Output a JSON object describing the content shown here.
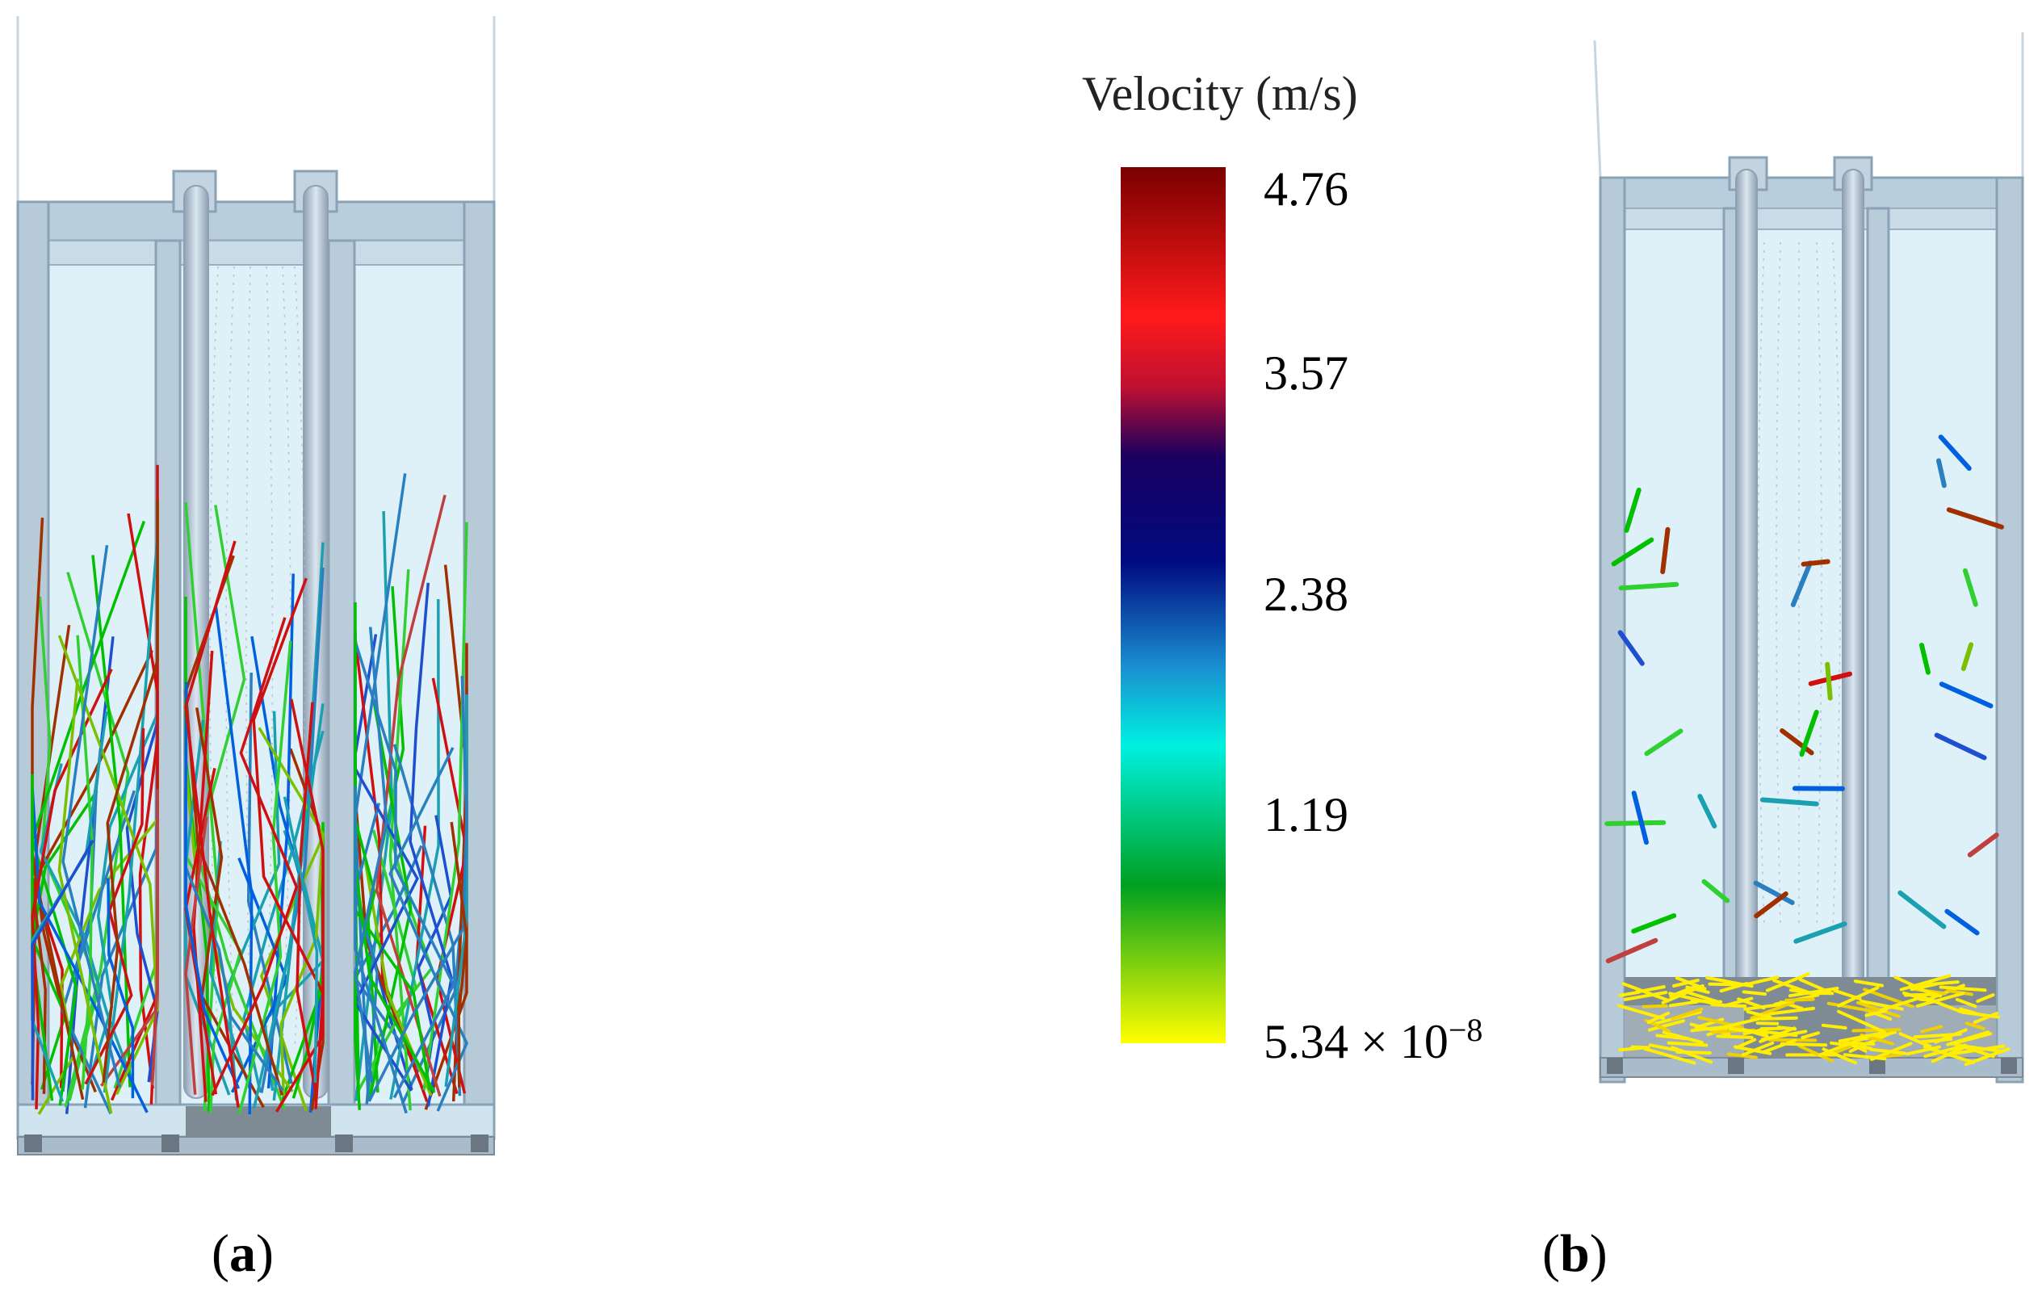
{
  "legend": {
    "title": "Velocity (m/s)",
    "ticks": [
      "4.76",
      "3.57",
      "2.38",
      "1.19"
    ],
    "min_base": "5.34 × 10",
    "min_exp": "−8",
    "colors": [
      "#7a0000",
      "#ff1a1a",
      "#1a0060",
      "#000a80",
      "#1a8fd0",
      "#00f0e0",
      "#00a020",
      "#a0e000",
      "#ffff00"
    ]
  },
  "panels": {
    "a": {
      "letter": "a"
    },
    "b": {
      "letter": "b"
    }
  },
  "particle_colors": [
    "#00c000",
    "#30d030",
    "#7ac000",
    "#0060e0",
    "#1d4fd0",
    "#2a7fc0",
    "#d01010",
    "#a03000",
    "#1aa0b0",
    "#c04040"
  ]
}
